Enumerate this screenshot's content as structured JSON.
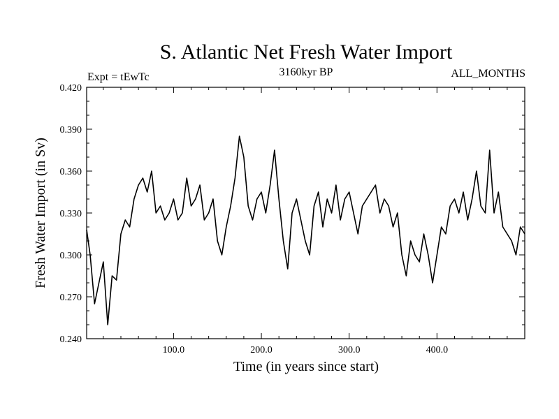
{
  "chart_data": {
    "type": "line",
    "title": "S. Atlantic Net Fresh Water Import",
    "subtitle_left": "Expt = tEwTc",
    "subtitle_center": "3160kyr BP",
    "subtitle_right": "ALL_MONTHS",
    "xlabel": "Time (in years since start)",
    "ylabel": "Fresh Water Import (in Sv)",
    "xlim": [
      1,
      500
    ],
    "ylim": [
      0.24,
      0.42
    ],
    "x_ticks": [
      100,
      200,
      300,
      400
    ],
    "x_tick_labels": [
      "100.0",
      "200.0",
      "300.0",
      "400.0"
    ],
    "y_ticks": [
      0.24,
      0.27,
      0.3,
      0.33,
      0.36,
      0.39,
      0.42
    ],
    "y_tick_labels": [
      "0.240",
      "0.270",
      "0.300",
      "0.330",
      "0.360",
      "0.390",
      "0.420"
    ],
    "grid": false,
    "series": [
      {
        "name": "fresh water import",
        "x": [
          1,
          5,
          10,
          15,
          20,
          25,
          30,
          35,
          40,
          45,
          50,
          55,
          60,
          65,
          70,
          75,
          80,
          85,
          90,
          95,
          100,
          105,
          110,
          115,
          120,
          125,
          130,
          135,
          140,
          145,
          150,
          155,
          160,
          165,
          170,
          175,
          180,
          185,
          190,
          195,
          200,
          205,
          210,
          215,
          220,
          225,
          230,
          235,
          240,
          245,
          250,
          255,
          260,
          265,
          270,
          275,
          280,
          285,
          290,
          295,
          300,
          305,
          310,
          315,
          320,
          325,
          330,
          335,
          340,
          345,
          350,
          355,
          360,
          365,
          370,
          375,
          380,
          385,
          390,
          395,
          400,
          405,
          410,
          415,
          420,
          425,
          430,
          435,
          440,
          445,
          450,
          455,
          460,
          465,
          470,
          475,
          480,
          485,
          490,
          495,
          500
        ],
        "values": [
          0.318,
          0.3,
          0.265,
          0.28,
          0.295,
          0.25,
          0.285,
          0.282,
          0.315,
          0.325,
          0.32,
          0.34,
          0.35,
          0.355,
          0.345,
          0.36,
          0.33,
          0.335,
          0.325,
          0.33,
          0.34,
          0.325,
          0.33,
          0.355,
          0.335,
          0.34,
          0.35,
          0.325,
          0.33,
          0.34,
          0.31,
          0.3,
          0.32,
          0.335,
          0.355,
          0.385,
          0.37,
          0.335,
          0.325,
          0.34,
          0.345,
          0.33,
          0.35,
          0.375,
          0.34,
          0.31,
          0.29,
          0.33,
          0.34,
          0.325,
          0.31,
          0.3,
          0.335,
          0.345,
          0.32,
          0.34,
          0.33,
          0.35,
          0.325,
          0.34,
          0.345,
          0.33,
          0.315,
          0.335,
          0.34,
          0.345,
          0.35,
          0.33,
          0.34,
          0.335,
          0.32,
          0.33,
          0.3,
          0.285,
          0.31,
          0.3,
          0.295,
          0.315,
          0.3,
          0.28,
          0.3,
          0.32,
          0.315,
          0.335,
          0.34,
          0.33,
          0.345,
          0.325,
          0.34,
          0.36,
          0.335,
          0.33,
          0.375,
          0.33,
          0.345,
          0.32,
          0.315,
          0.31,
          0.3,
          0.32,
          0.315
        ]
      }
    ]
  }
}
